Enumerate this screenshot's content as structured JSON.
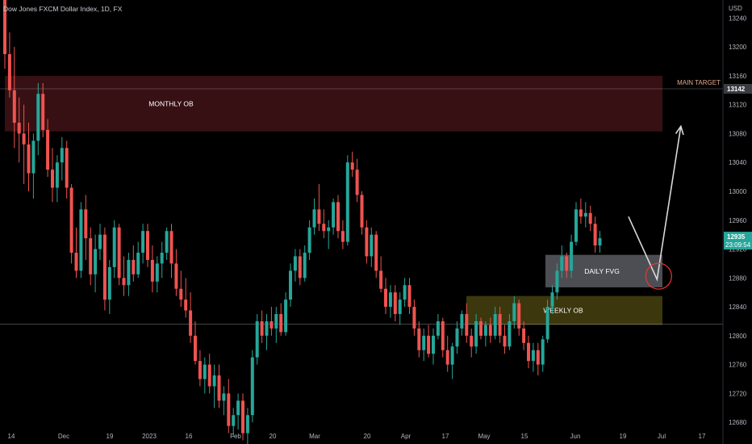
{
  "header": {
    "title": "Dow Jones FXCM Dollar Index, 1D, FX",
    "currency": "USD"
  },
  "colors": {
    "background": "#000000",
    "up": "#26a69a",
    "down": "#ef5350",
    "monthly_zone": "#3a1114",
    "weekly_zone": "#3f3a0e",
    "daily_zone": "#54565c",
    "target_line": "#b2b5be",
    "price_badge": "#26a69a",
    "target_badge": "#3a3c42",
    "target_label": "#e0a98f"
  },
  "price_badge": {
    "price": "12935",
    "countdown": "23:09:54"
  },
  "target_badge": {
    "price": "13142",
    "label": "MAIN TARGET"
  },
  "zones": {
    "monthly": {
      "label": "MONTHLY OB",
      "top": 13160,
      "bottom": 13083
    },
    "daily": {
      "label": "DAILY FVG",
      "top": 12912,
      "bottom": 12867
    },
    "weekly": {
      "label": "WEEKLY OB",
      "top": 12855,
      "bottom": 12815
    }
  },
  "horizontal_levels": [
    13142,
    12816
  ],
  "chart_data": {
    "type": "candlestick",
    "symbol": "Dow Jones FXCM Dollar Index",
    "timeframe": "1D",
    "y_axis_ticks": [
      13240,
      13200,
      13160,
      13120,
      13080,
      13040,
      13000,
      12960,
      12920,
      12880,
      12840,
      12800,
      12760,
      12720,
      12680
    ],
    "x_axis_labels": [
      "14",
      "Dec",
      "19",
      "2023",
      "16",
      "Feb",
      "20",
      "Mar",
      "20",
      "Apr",
      "17",
      "May",
      "15",
      "Jun",
      "19",
      "Jul",
      "17"
    ],
    "ylim": [
      12650,
      13265
    ],
    "projection_path": [
      {
        "bar": 131,
        "value": 12965
      },
      {
        "bar": 137,
        "value": 12878
      },
      {
        "bar": 142,
        "value": 13090
      }
    ],
    "candles": [
      [
        13265,
        13270,
        13170,
        13190
      ],
      [
        13190,
        13220,
        13130,
        13140
      ],
      [
        13140,
        13200,
        13060,
        13095
      ],
      [
        13095,
        13130,
        13040,
        13080
      ],
      [
        13080,
        13120,
        13010,
        13065
      ],
      [
        13065,
        13095,
        13000,
        13025
      ],
      [
        13025,
        13080,
        12990,
        13070
      ],
      [
        13070,
        13150,
        13050,
        13135
      ],
      [
        13135,
        13150,
        13075,
        13085
      ],
      [
        13085,
        13100,
        13020,
        13030
      ],
      [
        13030,
        13060,
        12985,
        13005
      ],
      [
        13005,
        13050,
        12985,
        13040
      ],
      [
        13040,
        13075,
        13015,
        13060
      ],
      [
        13060,
        13070,
        12990,
        13005
      ],
      [
        13005,
        13010,
        12900,
        12915
      ],
      [
        12915,
        12950,
        12880,
        12890
      ],
      [
        12890,
        12985,
        12880,
        12975
      ],
      [
        12975,
        12995,
        12905,
        12935
      ],
      [
        12935,
        12950,
        12870,
        12885
      ],
      [
        12885,
        12940,
        12860,
        12920
      ],
      [
        12920,
        12955,
        12905,
        12940
      ],
      [
        12940,
        12950,
        12835,
        12850
      ],
      [
        12850,
        12905,
        12830,
        12895
      ],
      [
        12895,
        12960,
        12880,
        12950
      ],
      [
        12950,
        12955,
        12870,
        12880
      ],
      [
        12880,
        12910,
        12855,
        12870
      ],
      [
        12870,
        12915,
        12855,
        12905
      ],
      [
        12905,
        12925,
        12875,
        12885
      ],
      [
        12885,
        12930,
        12880,
        12915
      ],
      [
        12915,
        12955,
        12900,
        12945
      ],
      [
        12945,
        12955,
        12895,
        12905
      ],
      [
        12905,
        12925,
        12860,
        12875
      ],
      [
        12875,
        12910,
        12860,
        12900
      ],
      [
        12900,
        12930,
        12880,
        12915
      ],
      [
        12915,
        12950,
        12905,
        12945
      ],
      [
        12945,
        12955,
        12880,
        12900
      ],
      [
        12900,
        12920,
        12855,
        12865
      ],
      [
        12865,
        12890,
        12840,
        12850
      ],
      [
        12850,
        12880,
        12825,
        12835
      ],
      [
        12835,
        12860,
        12790,
        12800
      ],
      [
        12800,
        12820,
        12760,
        12765
      ],
      [
        12765,
        12780,
        12730,
        12740
      ],
      [
        12740,
        12770,
        12720,
        12760
      ],
      [
        12760,
        12775,
        12720,
        12730
      ],
      [
        12730,
        12760,
        12700,
        12745
      ],
      [
        12745,
        12760,
        12700,
        12710
      ],
      [
        12710,
        12730,
        12690,
        12720
      ],
      [
        12720,
        12740,
        12665,
        12675
      ],
      [
        12675,
        12700,
        12660,
        12690
      ],
      [
        12690,
        12720,
        12670,
        12710
      ],
      [
        12710,
        12720,
        12655,
        12665
      ],
      [
        12665,
        12700,
        12650,
        12690
      ],
      [
        12690,
        12780,
        12680,
        12770
      ],
      [
        12770,
        12830,
        12760,
        12820
      ],
      [
        12820,
        12835,
        12790,
        12800
      ],
      [
        12800,
        12830,
        12780,
        12820
      ],
      [
        12820,
        12840,
        12800,
        12810
      ],
      [
        12810,
        12840,
        12790,
        12830
      ],
      [
        12830,
        12845,
        12800,
        12805
      ],
      [
        12805,
        12860,
        12800,
        12850
      ],
      [
        12850,
        12900,
        12840,
        12890
      ],
      [
        12890,
        12920,
        12875,
        12910
      ],
      [
        12910,
        12920,
        12870,
        12880
      ],
      [
        12880,
        12925,
        12875,
        12915
      ],
      [
        12915,
        12960,
        12905,
        12950
      ],
      [
        12950,
        12990,
        12940,
        12975
      ],
      [
        12975,
        13010,
        12945,
        12955
      ],
      [
        12955,
        12975,
        12935,
        12945
      ],
      [
        12945,
        12960,
        12920,
        12950
      ],
      [
        12950,
        12990,
        12940,
        12985
      ],
      [
        12985,
        12995,
        12935,
        12945
      ],
      [
        12945,
        12960,
        12920,
        12930
      ],
      [
        12930,
        13050,
        12925,
        13040
      ],
      [
        13040,
        13055,
        13020,
        13030
      ],
      [
        13030,
        13045,
        12985,
        12995
      ],
      [
        12995,
        13000,
        12940,
        12950
      ],
      [
        12950,
        12960,
        12900,
        12910
      ],
      [
        12910,
        12950,
        12895,
        12940
      ],
      [
        12940,
        12945,
        12880,
        12890
      ],
      [
        12890,
        12910,
        12860,
        12865
      ],
      [
        12865,
        12880,
        12830,
        12840
      ],
      [
        12840,
        12870,
        12825,
        12860
      ],
      [
        12860,
        12870,
        12820,
        12830
      ],
      [
        12830,
        12860,
        12815,
        12850
      ],
      [
        12850,
        12880,
        12840,
        12870
      ],
      [
        12870,
        12880,
        12830,
        12840
      ],
      [
        12840,
        12850,
        12800,
        12810
      ],
      [
        12810,
        12820,
        12770,
        12780
      ],
      [
        12780,
        12810,
        12765,
        12800
      ],
      [
        12800,
        12815,
        12770,
        12775
      ],
      [
        12775,
        12810,
        12760,
        12800
      ],
      [
        12800,
        12830,
        12795,
        12820
      ],
      [
        12820,
        12825,
        12770,
        12780
      ],
      [
        12780,
        12800,
        12750,
        12760
      ],
      [
        12760,
        12790,
        12740,
        12785
      ],
      [
        12785,
        12820,
        12775,
        12810
      ],
      [
        12810,
        12835,
        12800,
        12830
      ],
      [
        12830,
        12845,
        12790,
        12800
      ],
      [
        12800,
        12810,
        12770,
        12785
      ],
      [
        12785,
        12830,
        12775,
        12820
      ],
      [
        12820,
        12825,
        12795,
        12800
      ],
      [
        12800,
        12820,
        12785,
        12815
      ],
      [
        12815,
        12825,
        12790,
        12800
      ],
      [
        12800,
        12840,
        12795,
        12830
      ],
      [
        12830,
        12840,
        12790,
        12800
      ],
      [
        12800,
        12815,
        12775,
        12785
      ],
      [
        12785,
        12830,
        12780,
        12820
      ],
      [
        12820,
        12855,
        12810,
        12845
      ],
      [
        12845,
        12850,
        12800,
        12810
      ],
      [
        12810,
        12820,
        12780,
        12790
      ],
      [
        12790,
        12800,
        12755,
        12765
      ],
      [
        12765,
        12790,
        12750,
        12780
      ],
      [
        12780,
        12790,
        12745,
        12760
      ],
      [
        12760,
        12800,
        12750,
        12795
      ],
      [
        12795,
        12850,
        12790,
        12840
      ],
      [
        12840,
        12870,
        12830,
        12860
      ],
      [
        12860,
        12900,
        12850,
        12890
      ],
      [
        12890,
        12925,
        12880,
        12910
      ],
      [
        12910,
        12915,
        12880,
        12890
      ],
      [
        12890,
        12940,
        12880,
        12930
      ],
      [
        12930,
        12985,
        12925,
        12975
      ],
      [
        12975,
        12990,
        12955,
        12965
      ],
      [
        12965,
        12985,
        12950,
        12970
      ],
      [
        12970,
        12980,
        12945,
        12955
      ],
      [
        12955,
        12965,
        12915,
        12925
      ],
      [
        12925,
        12945,
        12915,
        12935
      ]
    ]
  }
}
